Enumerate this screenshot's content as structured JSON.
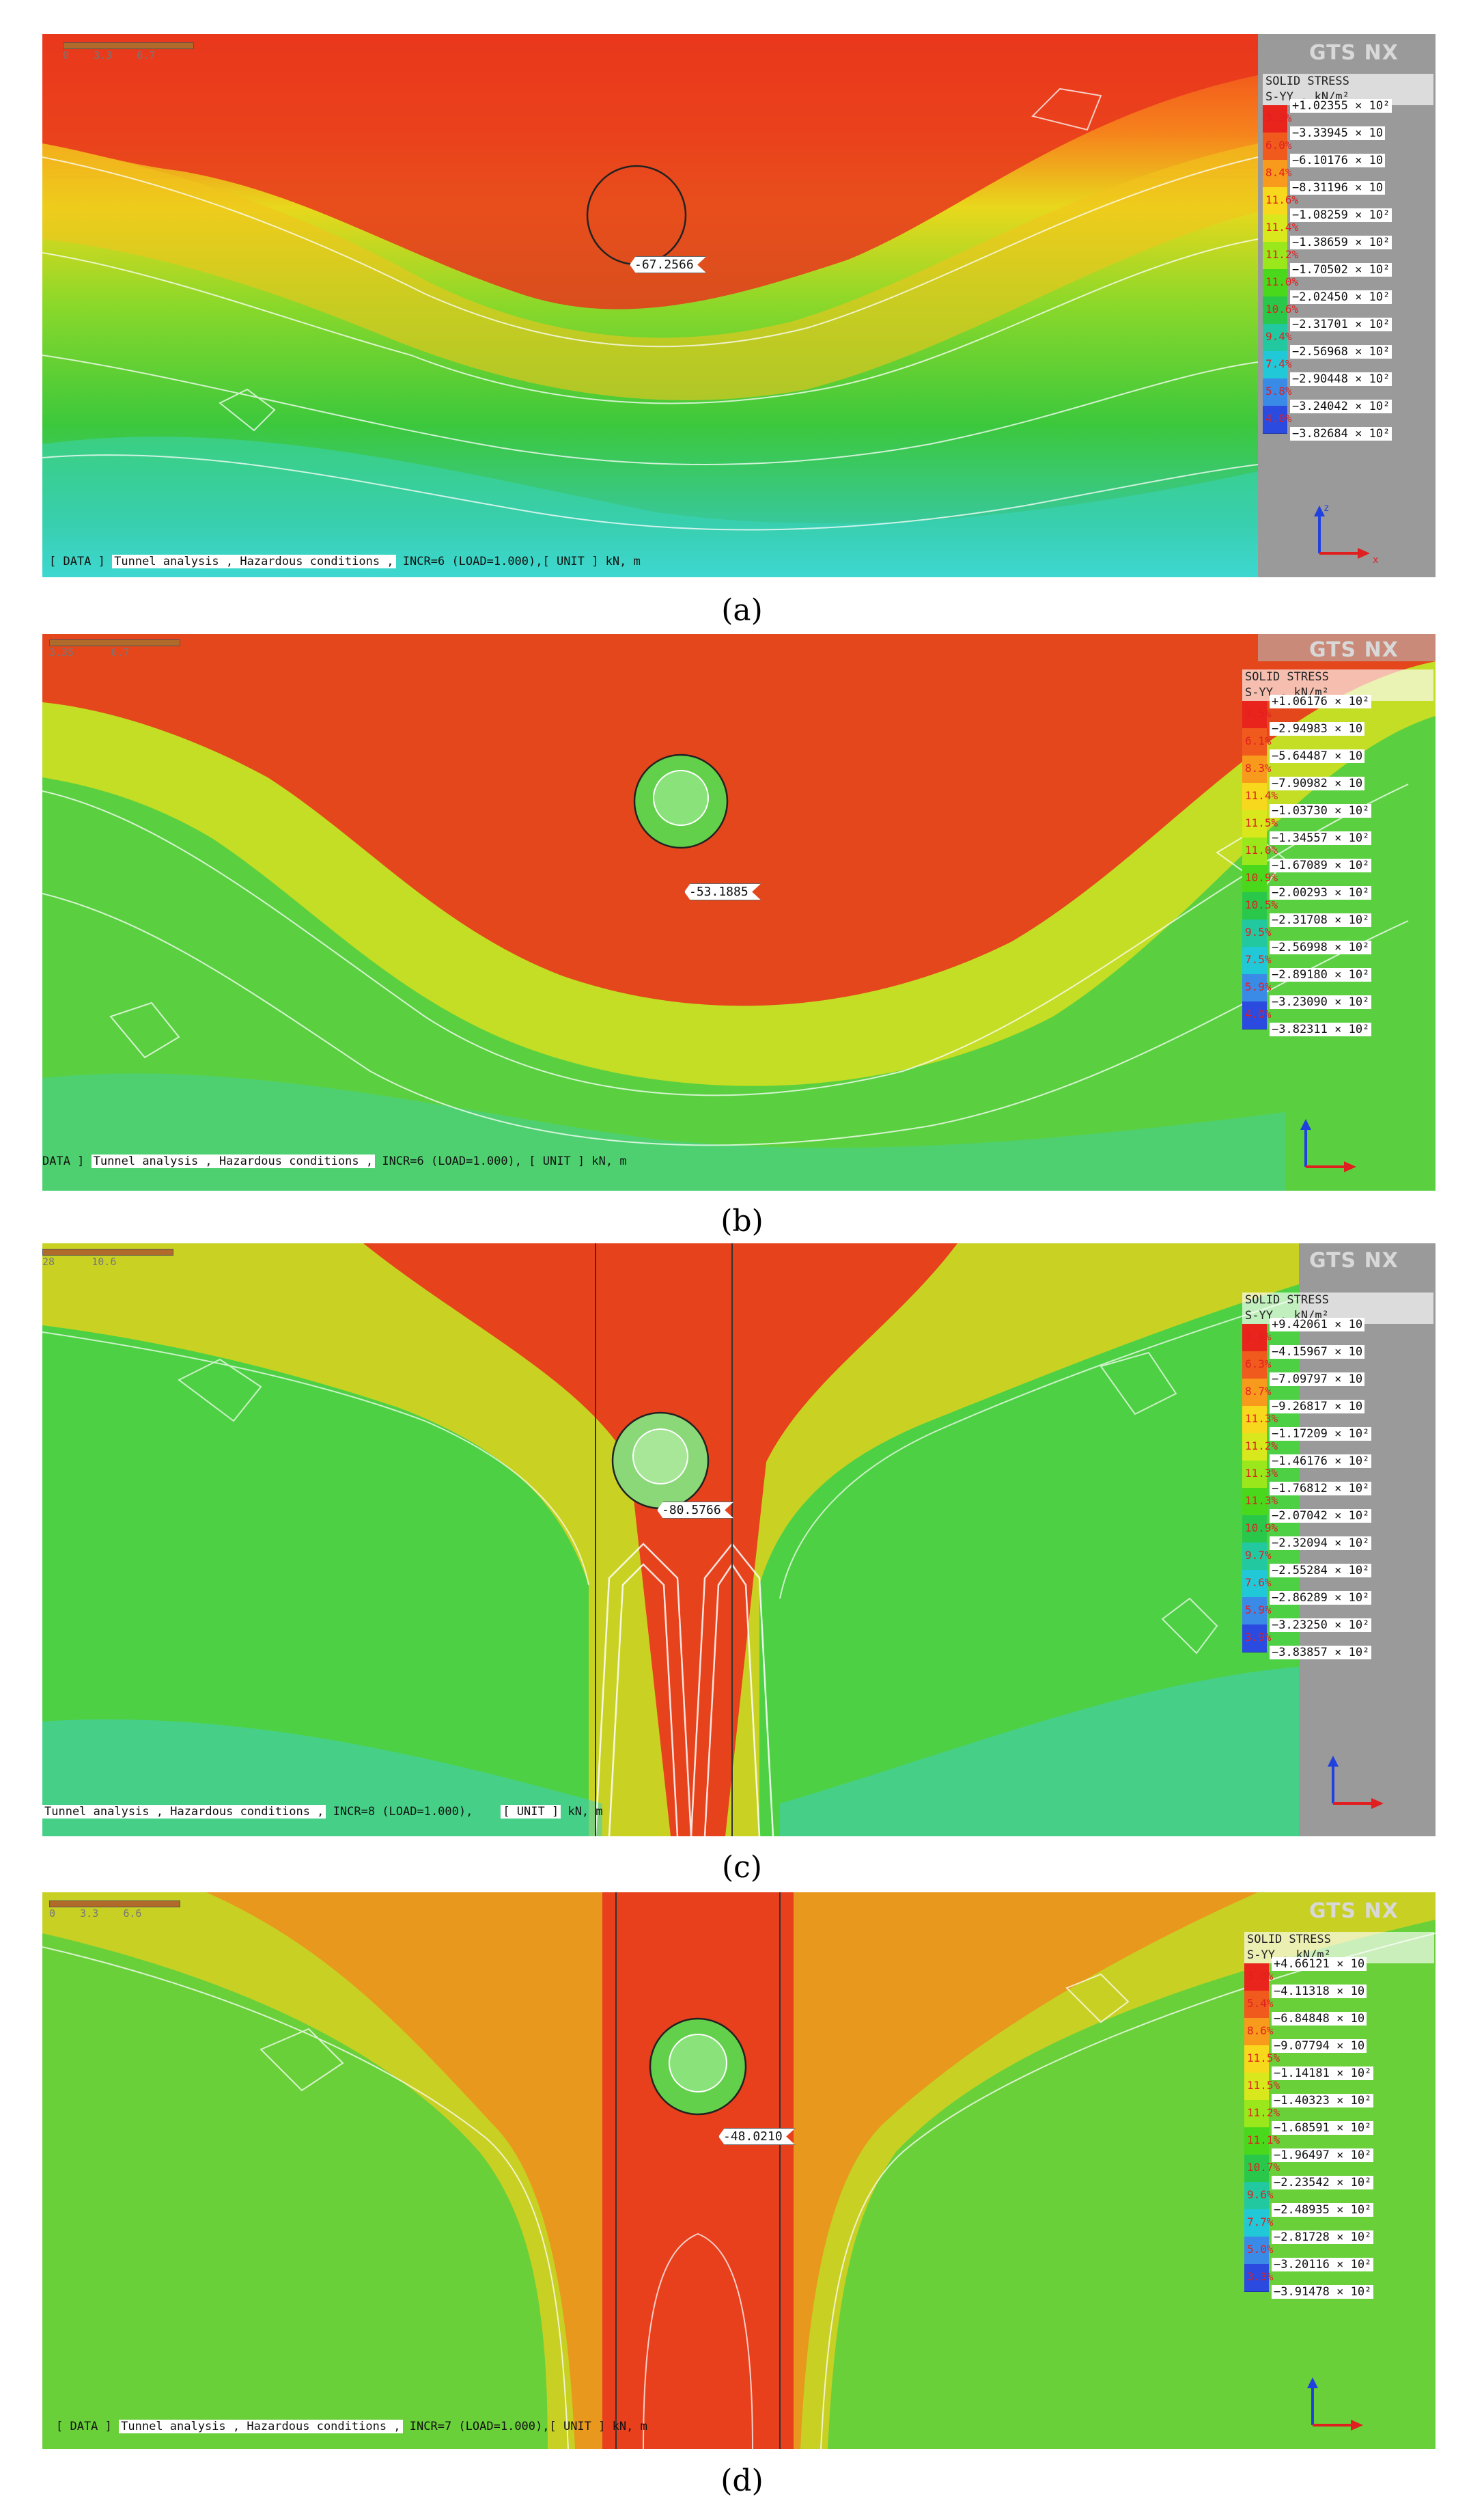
{
  "panels": [
    {
      "id": "a",
      "caption": "(a)",
      "legend_title": [
        "SOLID STRESS",
        "S-YY , kN/m²"
      ],
      "brand": "GTS NX",
      "footer_parts": [
        "[ DATA ]",
        "Tunnel analysis , Hazardous conditions ,",
        "INCR=6 (LOAD=1.000),[ UNIT ]",
        "kN,  m"
      ],
      "callout": "-67.2566",
      "scale_ticks": [
        "0",
        "3.3",
        "6.7"
      ],
      "legend_values": [
        "+1.02355 × 10²",
        "−3.33945 × 10",
        "−6.10176 × 10",
        "−8.31196 × 10",
        "−1.08259 × 10²",
        "−1.38659 × 10²",
        "−1.70502 × 10²",
        "−2.02450 × 10²",
        "−2.31701 × 10²",
        "−2.56968 × 10²",
        "−2.90448 × 10²",
        "−3.24042 × 10²",
        "−3.82684 × 10²"
      ],
      "legend_pcts": [
        "3.3%",
        "6.0%",
        "8.4%",
        "11.6%",
        "11.4%",
        "11.2%",
        "11.0%",
        "10.6%",
        "9.4%",
        "7.4%",
        "5.8%",
        "4.0%"
      ],
      "legend_colors": [
        "#e8241c",
        "#f05a1c",
        "#f89a1c",
        "#f8d81c",
        "#d8e81c",
        "#9ae81c",
        "#4ad81c",
        "#2ac84a",
        "#22c8a0",
        "#20c8d8",
        "#3a8ae8",
        "#2a4ae0"
      ]
    },
    {
      "id": "b",
      "caption": "(b)",
      "legend_title": [
        "SOLID STRESS",
        "S-YY , kN/m²"
      ],
      "brand": "GTS NX",
      "footer_parts": [
        "DATA ]",
        "Tunnel analysis , Hazardous conditions ,",
        "INCR=6 (LOAD=1.000),   [ UNIT ]",
        "kN,  m"
      ],
      "callout": "-53.1885",
      "scale_ticks": [
        "3.35",
        "6.7"
      ],
      "legend_values": [
        "+1.06176 × 10²",
        "−2.94983 × 10",
        "−5.64487 × 10",
        "−7.90982 × 10",
        "−1.03730 × 10²",
        "−1.34557 × 10²",
        "−1.67089 × 10²",
        "−2.00293 × 10²",
        "−2.31708 × 10²",
        "−2.56998 × 10²",
        "−2.89180 × 10²",
        "−3.23090 × 10²",
        "−3.82311 × 10²"
      ],
      "legend_pcts": [
        "3.5%",
        "6.1%",
        "8.3%",
        "11.4%",
        "11.5%",
        "11.0%",
        "10.9%",
        "10.5%",
        "9.5%",
        "7.5%",
        "5.9%",
        "4.0%"
      ],
      "legend_colors": [
        "#e8241c",
        "#f05a1c",
        "#f89a1c",
        "#f8d81c",
        "#d8e81c",
        "#9ae81c",
        "#4ad81c",
        "#2ac84a",
        "#22c8a0",
        "#20c8d8",
        "#3a8ae8",
        "#2a4ae0"
      ]
    },
    {
      "id": "c",
      "caption": "(c)",
      "legend_title": [
        "SOLID STRESS",
        "S-YY , kN/m²"
      ],
      "brand": "GTS NX",
      "footer_parts": [
        "Tunnel analysis , Hazardous conditions ,",
        "INCR=8 (LOAD=1.000),",
        "[ UNIT ]",
        "kN,  m"
      ],
      "callout": "-80.5766",
      "scale_ticks": [
        "28",
        "10.6"
      ],
      "legend_values": [
        "+9.42061 × 10",
        "−4.15967 × 10",
        "−7.09797 × 10",
        "−9.26817 × 10",
        "−1.17209 × 10²",
        "−1.46176 × 10²",
        "−1.76812 × 10²",
        "−2.07042 × 10²",
        "−2.32094 × 10²",
        "−2.55284 × 10²",
        "−2.86289 × 10²",
        "−3.23250 × 10²",
        "−3.83857 × 10²"
      ],
      "legend_pcts": [
        "3.8%",
        "6.3%",
        "8.7%",
        "11.3%",
        "11.2%",
        "11.3%",
        "11.3%",
        "10.9%",
        "9.7%",
        "7.6%",
        "5.9%",
        "3.9%"
      ],
      "legend_colors": [
        "#e8241c",
        "#f05a1c",
        "#f89a1c",
        "#f8d81c",
        "#d8e81c",
        "#9ae81c",
        "#4ad81c",
        "#2ac84a",
        "#22c8a0",
        "#20c8d8",
        "#3a8ae8",
        "#2a4ae0"
      ]
    },
    {
      "id": "d",
      "caption": "(d)",
      "legend_title": [
        "SOLID STRESS",
        "S-YY , kN/m²"
      ],
      "brand": "GTS NX",
      "footer_parts": [
        "[ DATA ]",
        "Tunnel analysis , Hazardous conditions ,",
        "INCR=7 (LOAD=1.000),[ UNIT ]",
        "kN,  m"
      ],
      "callout": "-48.0210",
      "scale_ticks": [
        "0",
        "3.3",
        "6.6"
      ],
      "legend_values": [
        "+4.66121 × 10",
        "−4.11318 × 10",
        "−6.84848 × 10",
        "−9.07794 × 10",
        "−1.14181 × 10²",
        "−1.40323 × 10²",
        "−1.68591 × 10²",
        "−1.96497 × 10²",
        "−2.23542 × 10²",
        "−2.48935 × 10²",
        "−2.81728 × 10²",
        "−3.20116 × 10²",
        "−3.91478 × 10²"
      ],
      "legend_pcts": [
        "3.0%",
        "5.4%",
        "8.6%",
        "11.5%",
        "11.5%",
        "11.2%",
        "11.1%",
        "10.7%",
        "9.6%",
        "7.7%",
        "5.0%",
        "3.3%"
      ],
      "legend_colors": [
        "#e8241c",
        "#f05a1c",
        "#f89a1c",
        "#f8d81c",
        "#d8e81c",
        "#9ae81c",
        "#4ad81c",
        "#2ac84a",
        "#22c8a0",
        "#20c8d8",
        "#3a8ae8",
        "#2a4ae0"
      ]
    }
  ]
}
